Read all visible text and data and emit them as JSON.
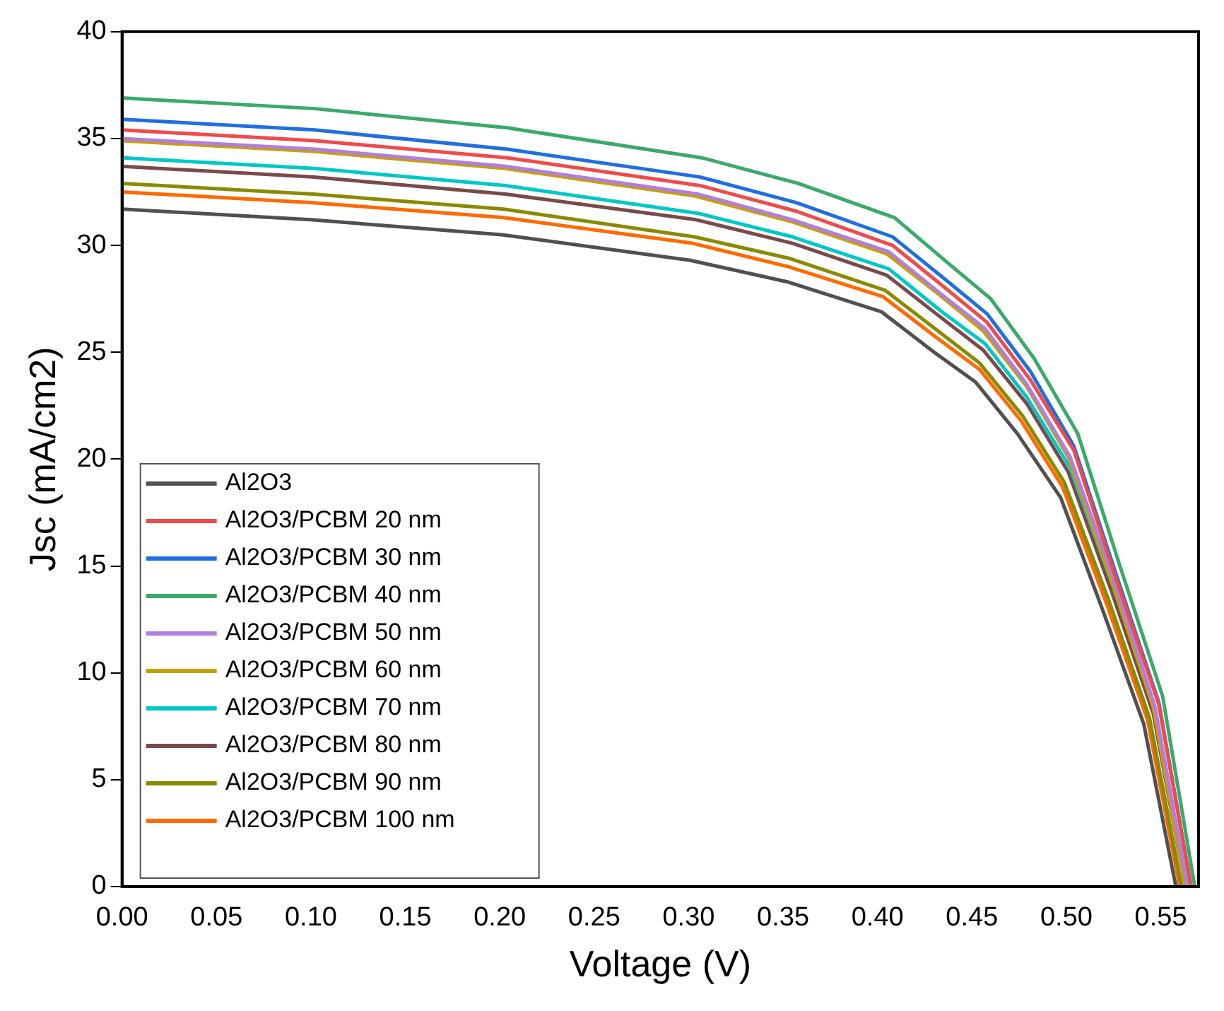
{
  "chart_data": {
    "type": "line",
    "xlabel": "Voltage (V)",
    "ylabel": "Jsc (mA/cm2)",
    "xlim": [
      0,
      0.57
    ],
    "xticks": [
      {
        "value": 0,
        "label": "0.00"
      },
      {
        "value": 0.05,
        "label": "0.05"
      },
      {
        "value": 0.1,
        "label": "0.10"
      },
      {
        "value": 0.15,
        "label": "0.15"
      },
      {
        "value": 0.2,
        "label": "0.20"
      },
      {
        "value": 0.25,
        "label": "0.25"
      },
      {
        "value": 0.3,
        "label": "0.30"
      },
      {
        "value": 0.35,
        "label": "0.35"
      },
      {
        "value": 0.4,
        "label": "0.40"
      },
      {
        "value": 0.45,
        "label": "0.45"
      },
      {
        "value": 0.5,
        "label": "0.50"
      },
      {
        "value": 0.55,
        "label": "0.55"
      }
    ],
    "ylim": [
      0,
      40
    ],
    "yticks": [
      0,
      5,
      10,
      15,
      20,
      25,
      30,
      35,
      40
    ],
    "grid": false,
    "legend": "bottom left",
    "marker": "none",
    "line_style": "solid",
    "series": [
      {
        "name": "Al2O3",
        "color": "#505050",
        "x": [
          0,
          0.1,
          0.201,
          0.301,
          0.352,
          0.402,
          0.43,
          0.452,
          0.474,
          0.497,
          0.519,
          0.541,
          0.558
        ],
        "values": [
          31.7,
          31.2,
          30.5,
          29.3,
          28.3,
          26.9,
          25.0,
          23.6,
          21.2,
          18.2,
          13.0,
          7.6,
          0
        ]
      },
      {
        "name": "Al2O3/PCBM 20 nm",
        "color": "#f04a4a",
        "x": [
          0,
          0.102,
          0.204,
          0.306,
          0.357,
          0.408,
          0.436,
          0.458,
          0.481,
          0.504,
          0.526,
          0.549,
          0.566
        ],
        "values": [
          35.4,
          34.9,
          34.1,
          32.8,
          31.6,
          30.0,
          28.0,
          26.4,
          23.7,
          20.4,
          14.5,
          8.5,
          0
        ]
      },
      {
        "name": "Al2O3/PCBM 30 nm",
        "color": "#1f6fe0",
        "x": [
          0,
          0.102,
          0.204,
          0.306,
          0.357,
          0.408,
          0.436,
          0.458,
          0.481,
          0.504,
          0.526,
          0.549,
          0.566
        ],
        "values": [
          35.9,
          35.4,
          34.5,
          33.2,
          32.0,
          30.4,
          28.4,
          26.8,
          24.1,
          20.6,
          14.7,
          8.6,
          0
        ]
      },
      {
        "name": "Al2O3/PCBM 40 nm",
        "color": "#3aaa6a",
        "x": [
          0,
          0.102,
          0.204,
          0.307,
          0.358,
          0.409,
          0.437,
          0.46,
          0.483,
          0.506,
          0.528,
          0.551,
          0.568
        ],
        "values": [
          36.9,
          36.4,
          35.5,
          34.1,
          32.9,
          31.3,
          29.2,
          27.5,
          24.7,
          21.2,
          15.1,
          8.9,
          0
        ]
      },
      {
        "name": "Al2O3/PCBM 50 nm",
        "color": "#b07ee0",
        "x": [
          0,
          0.102,
          0.203,
          0.305,
          0.355,
          0.406,
          0.434,
          0.457,
          0.479,
          0.502,
          0.525,
          0.547,
          0.564
        ],
        "values": [
          35.0,
          34.5,
          33.7,
          32.4,
          31.2,
          29.7,
          27.7,
          26.1,
          23.5,
          20.1,
          14.4,
          8.4,
          0
        ]
      },
      {
        "name": "Al2O3/PCBM 60 nm",
        "color": "#c8a000",
        "x": [
          0,
          0.101,
          0.203,
          0.304,
          0.355,
          0.405,
          0.434,
          0.456,
          0.479,
          0.501,
          0.524,
          0.546,
          0.563
        ],
        "values": [
          34.9,
          34.4,
          33.6,
          32.3,
          31.1,
          29.6,
          27.6,
          26.0,
          23.4,
          20.1,
          14.3,
          8.4,
          0
        ]
      },
      {
        "name": "Al2O3/PCBM 70 nm",
        "color": "#00c8c8",
        "x": [
          0,
          0.102,
          0.203,
          0.305,
          0.355,
          0.406,
          0.434,
          0.457,
          0.479,
          0.502,
          0.525,
          0.547,
          0.564
        ],
        "values": [
          34.1,
          33.6,
          32.8,
          31.5,
          30.4,
          28.9,
          26.9,
          25.4,
          22.9,
          19.6,
          14.0,
          8.2,
          0
        ]
      },
      {
        "name": "Al2O3/PCBM 80 nm",
        "color": "#7a4a4a",
        "x": [
          0,
          0.101,
          0.203,
          0.304,
          0.355,
          0.405,
          0.434,
          0.456,
          0.479,
          0.501,
          0.524,
          0.546,
          0.563
        ],
        "values": [
          33.7,
          33.2,
          32.4,
          31.2,
          30.1,
          28.6,
          26.6,
          25.1,
          22.6,
          19.4,
          13.8,
          8.1,
          0
        ]
      },
      {
        "name": "Al2O3/PCBM 90 nm",
        "color": "#8a8a00",
        "x": [
          0,
          0.101,
          0.202,
          0.303,
          0.353,
          0.404,
          0.432,
          0.454,
          0.477,
          0.499,
          0.522,
          0.544,
          0.561
        ],
        "values": [
          32.9,
          32.4,
          31.7,
          30.4,
          29.4,
          27.9,
          26.0,
          24.5,
          22.0,
          18.9,
          13.5,
          7.9,
          0
        ]
      },
      {
        "name": "Al2O3/PCBM 100 nm",
        "color": "#ff6a00",
        "x": [
          0,
          0.101,
          0.202,
          0.302,
          0.353,
          0.403,
          0.431,
          0.454,
          0.476,
          0.498,
          0.521,
          0.543,
          0.56
        ],
        "values": [
          32.5,
          32.0,
          31.3,
          30.1,
          29.0,
          27.6,
          25.7,
          24.2,
          21.8,
          18.7,
          13.3,
          7.8,
          0
        ]
      }
    ]
  }
}
